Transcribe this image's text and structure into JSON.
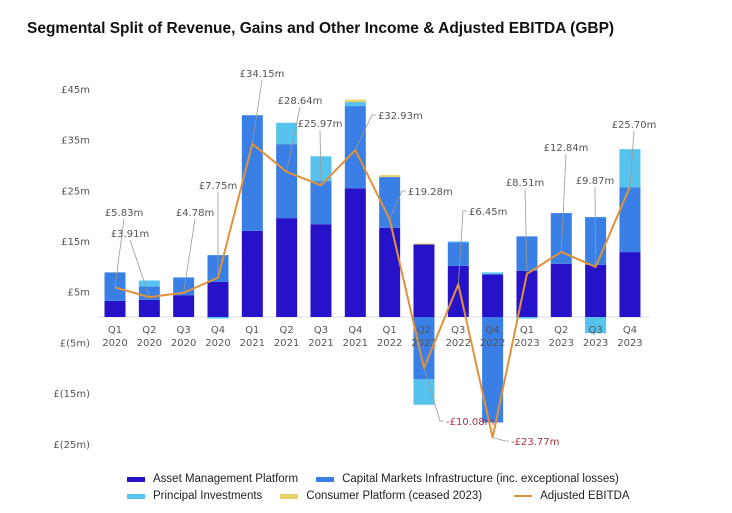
{
  "chart_data": {
    "type": "bar",
    "stacked": true,
    "title": "Segmental Split of Revenue, Gains and Other Income & Adjusted EBITDA (GBP)",
    "categories": [
      "Q1 2020",
      "Q2 2020",
      "Q3 2020",
      "Q4 2020",
      "Q1 2021",
      "Q2 2021",
      "Q3 2021",
      "Q4 2021",
      "Q1 2022",
      "Q2 2022",
      "Q3 2022",
      "Q4 2022",
      "Q1 2023",
      "Q2 2023",
      "Q3 2023",
      "Q4 2023"
    ],
    "y_ticks": [
      {
        "value": 45,
        "label": "£45m"
      },
      {
        "value": 35,
        "label": "£35m"
      },
      {
        "value": 25,
        "label": "£25m"
      },
      {
        "value": 15,
        "label": "£15m"
      },
      {
        "value": 5,
        "label": "£5m"
      },
      {
        "value": -5,
        "label": "£(5m)"
      },
      {
        "value": -15,
        "label": "£(15m)"
      },
      {
        "value": -25,
        "label": "£(25m)"
      }
    ],
    "ylim": [
      -27,
      47
    ],
    "unit": "£m",
    "grid": false,
    "legend_position": "bottom",
    "series": [
      {
        "name": "Asset Management Platform",
        "color": "#2612c8",
        "values": [
          3.2,
          3.4,
          4.3,
          6.9,
          17.0,
          19.5,
          18.3,
          25.4,
          17.6,
          14.3,
          10.1,
          8.4,
          9.1,
          10.5,
          10.3,
          12.8
        ]
      },
      {
        "name": "Capital Markets Infrastructure (inc. exceptional losses)",
        "color": "#3a7fe6",
        "values": [
          5.6,
          2.6,
          3.5,
          5.3,
          22.8,
          14.6,
          8.5,
          16.2,
          10.0,
          -12.3,
          4.6,
          -20.8,
          6.8,
          10.0,
          9.4,
          12.8
        ]
      },
      {
        "name": "Principal Investments",
        "color": "#55c3ee",
        "values": [
          0,
          1.2,
          0,
          -0.3,
          0,
          4.2,
          4.9,
          0.8,
          0,
          -5.0,
          0.2,
          0.4,
          -0.3,
          0,
          -3.2,
          7.5
        ]
      },
      {
        "name": "Consumer Platform (ceased 2023)",
        "color": "#e8d36a",
        "values": [
          0,
          0,
          0,
          0,
          0,
          0,
          0,
          0.5,
          0.4,
          0.2,
          0,
          0,
          0,
          0,
          0,
          0
        ]
      }
    ],
    "line": {
      "name": "Adjusted EBITDA",
      "color": "#e0923a",
      "values": [
        5.83,
        3.91,
        4.78,
        7.75,
        34.15,
        28.64,
        25.97,
        32.93,
        19.28,
        -10.08,
        6.45,
        -23.77,
        8.51,
        12.84,
        9.87,
        25.7
      ],
      "labels": [
        "£5.83m",
        "£3.91m",
        "£4.78m",
        "£7.75m",
        "£34.15m",
        "£28.64m",
        "£25.97m",
        "£32.93m",
        "£19.28m",
        "-£10.08m",
        "£6.45m",
        "-£23.77m",
        "£8.51m",
        "£12.84m",
        "£9.87m",
        "£25.70m"
      ],
      "negative_label_color": "#b03040"
    }
  }
}
